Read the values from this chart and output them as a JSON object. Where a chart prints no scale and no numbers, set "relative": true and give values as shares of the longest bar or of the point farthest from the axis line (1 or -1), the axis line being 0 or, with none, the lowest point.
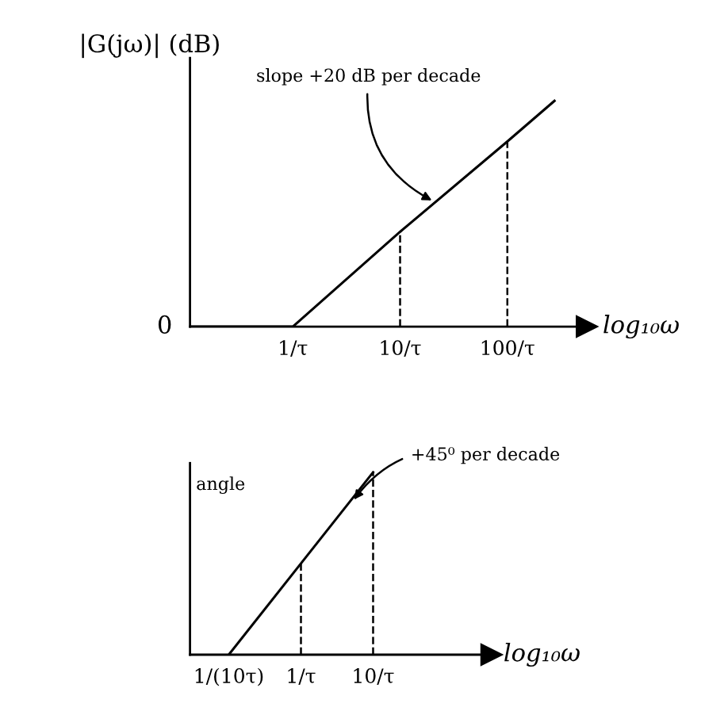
{
  "chart_data": [
    {
      "type": "line",
      "relative": true,
      "ylabel": "|G(jω)| (dB)",
      "xlabel": "log₁₀ω",
      "log": "x",
      "xlim": [
        0.11,
        550
      ],
      "xticks": [
        {
          "value": 1,
          "label": "1/τ"
        },
        {
          "value": 10,
          "label": "10/τ"
        },
        {
          "value": 100,
          "label": "100/τ"
        }
      ],
      "series": [
        {
          "color": "#000000",
          "x": [
            0.11,
            1,
            10,
            100,
            275
          ],
          "values": [
            0,
            0,
            0.42,
            0.82,
            1
          ]
        }
      ],
      "ref_lines": [
        {
          "axis": "x",
          "value": 10,
          "line_style": "dashed",
          "color": "#000000"
        },
        {
          "axis": "x",
          "value": 100,
          "line_style": "dashed",
          "color": "#000000"
        }
      ],
      "annotations": [
        {
          "text": "slope +20 dB per decade",
          "x": 21.5,
          "y": 0.55
        },
        "0"
      ],
      "grid": false,
      "legend": false,
      "marker": "none",
      "line_style": "solid"
    },
    {
      "type": "line",
      "relative": true,
      "ylabel": "angle",
      "xlabel": "log₁₀ω",
      "log": "x",
      "xlim": [
        0.029,
        436
      ],
      "xticks": [
        {
          "value": 0.1,
          "label": "1/(10τ)"
        },
        {
          "value": 1,
          "label": "1/τ"
        },
        {
          "value": 10,
          "label": "10/τ"
        }
      ],
      "series": [
        {
          "color": "#000000",
          "x": [
            0.1,
            1,
            10
          ],
          "values": [
            0,
            0.5,
            1
          ]
        }
      ],
      "ref_lines": [
        {
          "axis": "x",
          "value": 1,
          "line_style": "dashed",
          "color": "#000000"
        },
        {
          "axis": "x",
          "value": 10,
          "line_style": "dashed",
          "color": "#000000"
        }
      ],
      "annotations": [
        {
          "text": "+45⁰ per decade",
          "x": 5.0,
          "y": 0.83
        }
      ],
      "grid": false,
      "legend": false,
      "marker": "none",
      "line_style": "solid"
    }
  ]
}
